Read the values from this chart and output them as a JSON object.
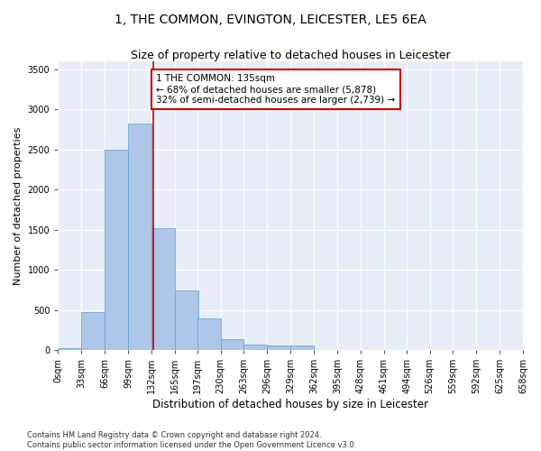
{
  "title": "1, THE COMMON, EVINGTON, LEICESTER, LE5 6EA",
  "subtitle": "Size of property relative to detached houses in Leicester",
  "xlabel": "Distribution of detached houses by size in Leicester",
  "ylabel": "Number of detached properties",
  "bar_values": [
    20,
    470,
    2500,
    2820,
    1520,
    740,
    390,
    140,
    70,
    55,
    55,
    0,
    0,
    0,
    0,
    0,
    0,
    0,
    0
  ],
  "bin_edges": [
    0,
    33,
    66,
    99,
    132,
    165,
    197,
    230,
    263,
    296,
    329,
    362,
    395,
    428,
    461,
    494,
    526,
    559,
    592,
    625
  ],
  "tick_labels": [
    "0sqm",
    "33sqm",
    "66sqm",
    "99sqm",
    "132sqm",
    "165sqm",
    "197sqm",
    "230sqm",
    "263sqm",
    "296sqm",
    "329sqm",
    "362sqm",
    "395sqm",
    "428sqm",
    "461sqm",
    "494sqm",
    "526sqm",
    "559sqm",
    "592sqm",
    "625sqm",
    "658sqm"
  ],
  "bar_color": "#aec6e8",
  "bar_edgecolor": "#5a9fd4",
  "vline_x": 135,
  "vline_color": "#cc0000",
  "annotation_text": "1 THE COMMON: 135sqm\n← 68% of detached houses are smaller (5,878)\n32% of semi-detached houses are larger (2,739) →",
  "annotation_box_color": "#ffffff",
  "annotation_box_edgecolor": "#cc0000",
  "ylim": [
    0,
    3600
  ],
  "yticks": [
    0,
    500,
    1000,
    1500,
    2000,
    2500,
    3000,
    3500
  ],
  "bg_color": "#e8eef8",
  "footnote": "Contains HM Land Registry data © Crown copyright and database right 2024.\nContains public sector information licensed under the Open Government Licence v3.0.",
  "title_fontsize": 10,
  "subtitle_fontsize": 9,
  "tick_fontsize": 7,
  "ylabel_fontsize": 8,
  "xlabel_fontsize": 8.5,
  "annot_fontsize": 7.5,
  "footnote_fontsize": 6
}
